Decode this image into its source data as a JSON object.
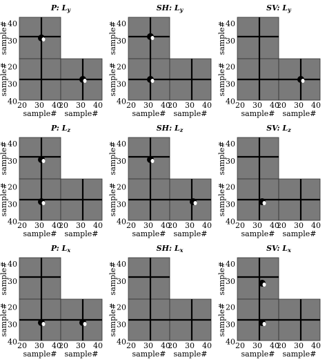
{
  "panels": [
    {
      "title": "P: L",
      "title_sub": "y",
      "x_label": "sample#",
      "y_label": "sample#"
    },
    {
      "title": "SH: L",
      "title_sub": "y",
      "x_label": "sample#",
      "y_label": "sample#"
    },
    {
      "title": "SV: L",
      "title_sub": "y",
      "x_label": "sample#",
      "y_label": "sample#"
    },
    {
      "title": "P: L",
      "title_sub": "z",
      "x_label": "sample#",
      "y_label": "sample#"
    },
    {
      "title": "SH: L",
      "title_sub": "z",
      "x_label": "sample#",
      "y_label": "sample#"
    },
    {
      "title": "SV: L",
      "title_sub": "z",
      "x_label": "sample#",
      "y_label": "sample#"
    },
    {
      "title": "P: L",
      "title_sub": "x",
      "x_label": "sample#",
      "y_label": "sample#"
    },
    {
      "title": "SH: L",
      "title_sub": "x",
      "x_label": "sample#",
      "y_label": "sample#"
    },
    {
      "title": "SV: L",
      "title_sub": "x",
      "x_label": "sample#",
      "y_label": "sample#"
    }
  ],
  "upper_yticks": [
    40,
    30
  ],
  "lower_yticks": [
    20,
    30,
    40
  ],
  "xticks": [
    20,
    30,
    40
  ]
}
